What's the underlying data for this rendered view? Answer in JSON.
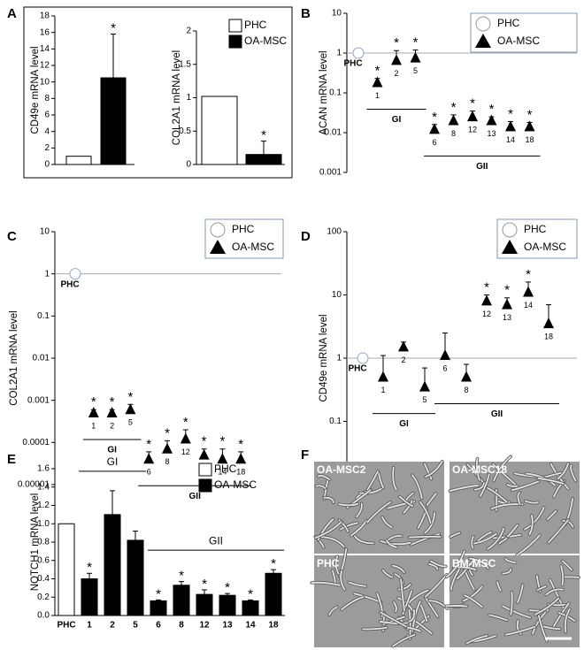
{
  "chart_data": [
    {
      "type": "bar",
      "panel": "A",
      "y_label": "CD49e mRNA level",
      "ylim": [
        0,
        18
      ],
      "yticks": [
        0,
        2,
        4,
        6,
        8,
        10,
        12,
        14,
        16,
        18
      ],
      "series": [
        {
          "color": "#ffffff",
          "values": [
            1
          ]
        },
        {
          "color": "#000000",
          "values": [
            10.5
          ],
          "errors": [
            5.3
          ],
          "significance": [
            "*"
          ]
        }
      ]
    },
    {
      "type": "bar",
      "y_label": "COL2A1 mRNA level",
      "ylim": [
        0,
        2
      ],
      "yticks": [
        0,
        0.5,
        1,
        1.5,
        2
      ],
      "legend": "top-right",
      "series": [
        {
          "name": "PHC",
          "color": "#ffffff",
          "values": [
            1.02
          ]
        },
        {
          "name": "OA-MSC",
          "color": "#000000",
          "values": [
            0.15
          ],
          "errors": [
            0.2
          ],
          "significance": [
            "*"
          ]
        }
      ]
    },
    {
      "type": "dot",
      "panel": "B",
      "y_label": "ACAN mRNA level",
      "log_scale": true,
      "ylim": [
        0.001,
        10
      ],
      "yticks": [
        0.001,
        0.01,
        0.1,
        1,
        10
      ],
      "reference_line": 1,
      "legend": "top-right",
      "categories": [
        "PHC",
        "1",
        "2",
        "5",
        "6",
        "8",
        "12",
        "13",
        "14",
        "18"
      ],
      "groups": [
        {
          "label": "GI",
          "categories": [
            "1",
            "2",
            "5"
          ]
        },
        {
          "label": "GII",
          "categories": [
            "6",
            "8",
            "12",
            "13",
            "14",
            "18"
          ]
        }
      ],
      "series": [
        {
          "name": "PHC",
          "marker": "circle",
          "color": "#ffffff",
          "values": [
            1,
            null,
            null,
            null,
            null,
            null,
            null,
            null,
            null,
            null
          ]
        },
        {
          "name": "OA-MSC",
          "marker": "triangle",
          "color": "#000000",
          "values": [
            null,
            0.18,
            0.65,
            0.75,
            0.012,
            0.02,
            0.025,
            0.02,
            0.014,
            0.014
          ],
          "errors": [
            null,
            0.05,
            0.5,
            0.45,
            0.004,
            0.008,
            0.01,
            0.005,
            0.005,
            0.004
          ],
          "significance": [
            null,
            "*",
            "*",
            "*",
            "*",
            "*",
            "*",
            "*",
            "*",
            "*"
          ]
        }
      ]
    },
    {
      "type": "dot",
      "panel": "C",
      "y_label": "COL2A1 mRNA level",
      "log_scale": true,
      "ylim": [
        1e-05,
        10
      ],
      "yticks": [
        1e-05,
        0.0001,
        0.001,
        0.01,
        0.1,
        1,
        10
      ],
      "reference_line": 1,
      "legend": "top-right",
      "categories": [
        "PHC",
        "1",
        "2",
        "5",
        "6",
        "8",
        "12",
        "13",
        "14",
        "18"
      ],
      "groups": [
        {
          "label": "GI",
          "categories": [
            "1",
            "2",
            "5"
          ]
        },
        {
          "label": "GII",
          "categories": [
            "6",
            "8",
            "12",
            "13",
            "14",
            "18"
          ]
        }
      ],
      "series": [
        {
          "name": "PHC",
          "marker": "circle",
          "color": "#ffffff",
          "values": [
            1,
            null,
            null,
            null,
            null,
            null,
            null,
            null,
            null,
            null
          ]
        },
        {
          "name": "OA-MSC",
          "marker": "triangle",
          "color": "#000000",
          "values": [
            null,
            0.0005,
            0.0005,
            0.0006,
            4e-05,
            7e-05,
            0.00012,
            5e-05,
            4e-05,
            4e-05
          ],
          "errors": [
            null,
            0.0001,
            0.0001,
            0.0002,
            2e-05,
            4e-05,
            8e-05,
            2e-05,
            3e-05,
            2e-05
          ],
          "significance": [
            null,
            "*",
            "*",
            "*",
            "*",
            "*",
            "*",
            "*",
            "*",
            "*"
          ]
        }
      ]
    },
    {
      "type": "dot",
      "panel": "D",
      "y_label": "CD49e mRNA level",
      "log_scale": true,
      "ylim": [
        0.01,
        100
      ],
      "yticks": [
        0.01,
        0.1,
        1,
        10,
        100
      ],
      "reference_line": 1,
      "legend": "top-right",
      "categories": [
        "PHC",
        "1",
        "2",
        "5",
        "6",
        "8",
        "12",
        "13",
        "14",
        "18"
      ],
      "groups": [
        {
          "label": "GI",
          "categories": [
            "1",
            "2",
            "5"
          ]
        },
        {
          "label": "GII",
          "categories": [
            "6",
            "8",
            "12",
            "13",
            "14",
            "18"
          ]
        }
      ],
      "series": [
        {
          "name": "PHC",
          "marker": "circle",
          "color": "#ffffff",
          "values": [
            1,
            null,
            null,
            null,
            null,
            null,
            null,
            null,
            null,
            null
          ]
        },
        {
          "name": "OA-MSC",
          "marker": "triangle",
          "color": "#000000",
          "values": [
            null,
            0.5,
            1.5,
            0.35,
            1.1,
            0.5,
            8,
            7,
            11,
            3.5
          ],
          "errors": [
            null,
            0.6,
            0.3,
            0.35,
            1.4,
            0.3,
            2,
            2,
            5,
            3.5
          ],
          "significance": [
            null,
            null,
            null,
            null,
            null,
            null,
            "*",
            "*",
            "*",
            null
          ]
        }
      ]
    },
    {
      "type": "bar",
      "panel": "E",
      "y_label": "NOTCH1 mRNA level",
      "ylim": [
        0,
        1.6
      ],
      "yticks": [
        {
          "value": 0,
          "label": "0.0"
        },
        {
          "value": 0.2,
          "label": "0.2"
        },
        {
          "value": 0.4,
          "label": "0.4"
        },
        {
          "value": 0.6,
          "label": "0.6"
        },
        {
          "value": 0.8,
          "label": "0.8"
        },
        {
          "value": 1,
          "label": "1.0"
        },
        {
          "value": 1.2,
          "label": "1.2"
        },
        {
          "value": 1.4,
          "label": "1.4"
        },
        {
          "value": 1.6,
          "label": "1.6"
        }
      ],
      "legend": "top-right",
      "categories": [
        "PHC",
        "1",
        "2",
        "5",
        "6",
        "8",
        "12",
        "13",
        "14",
        "18"
      ],
      "groups": [
        {
          "label": "GI",
          "categories": [
            "1",
            "2",
            "5"
          ]
        },
        {
          "label": "GII",
          "categories": [
            "6",
            "8",
            "12",
            "13",
            "14",
            "18"
          ]
        }
      ],
      "series": [
        {
          "name": "PHC",
          "color": "#ffffff",
          "values": [
            1,
            null,
            null,
            null,
            null,
            null,
            null,
            null,
            null,
            null
          ]
        },
        {
          "name": "OA-MSC",
          "color": "#000000",
          "values": [
            null,
            0.4,
            1.1,
            0.82,
            0.16,
            0.33,
            0.23,
            0.22,
            0.16,
            0.46
          ],
          "errors": [
            null,
            0.06,
            0.26,
            0.1,
            0.01,
            0.04,
            0.05,
            0.02,
            0.01,
            0.04
          ],
          "significance": [
            null,
            "*",
            null,
            null,
            "*",
            "*",
            "*",
            "*",
            "*",
            "*"
          ]
        }
      ]
    }
  ],
  "figure_f": {
    "panel": "F",
    "labels": [
      "OA-MSC2",
      "OA-MSC18",
      "PHC",
      "BM-MSC"
    ]
  }
}
